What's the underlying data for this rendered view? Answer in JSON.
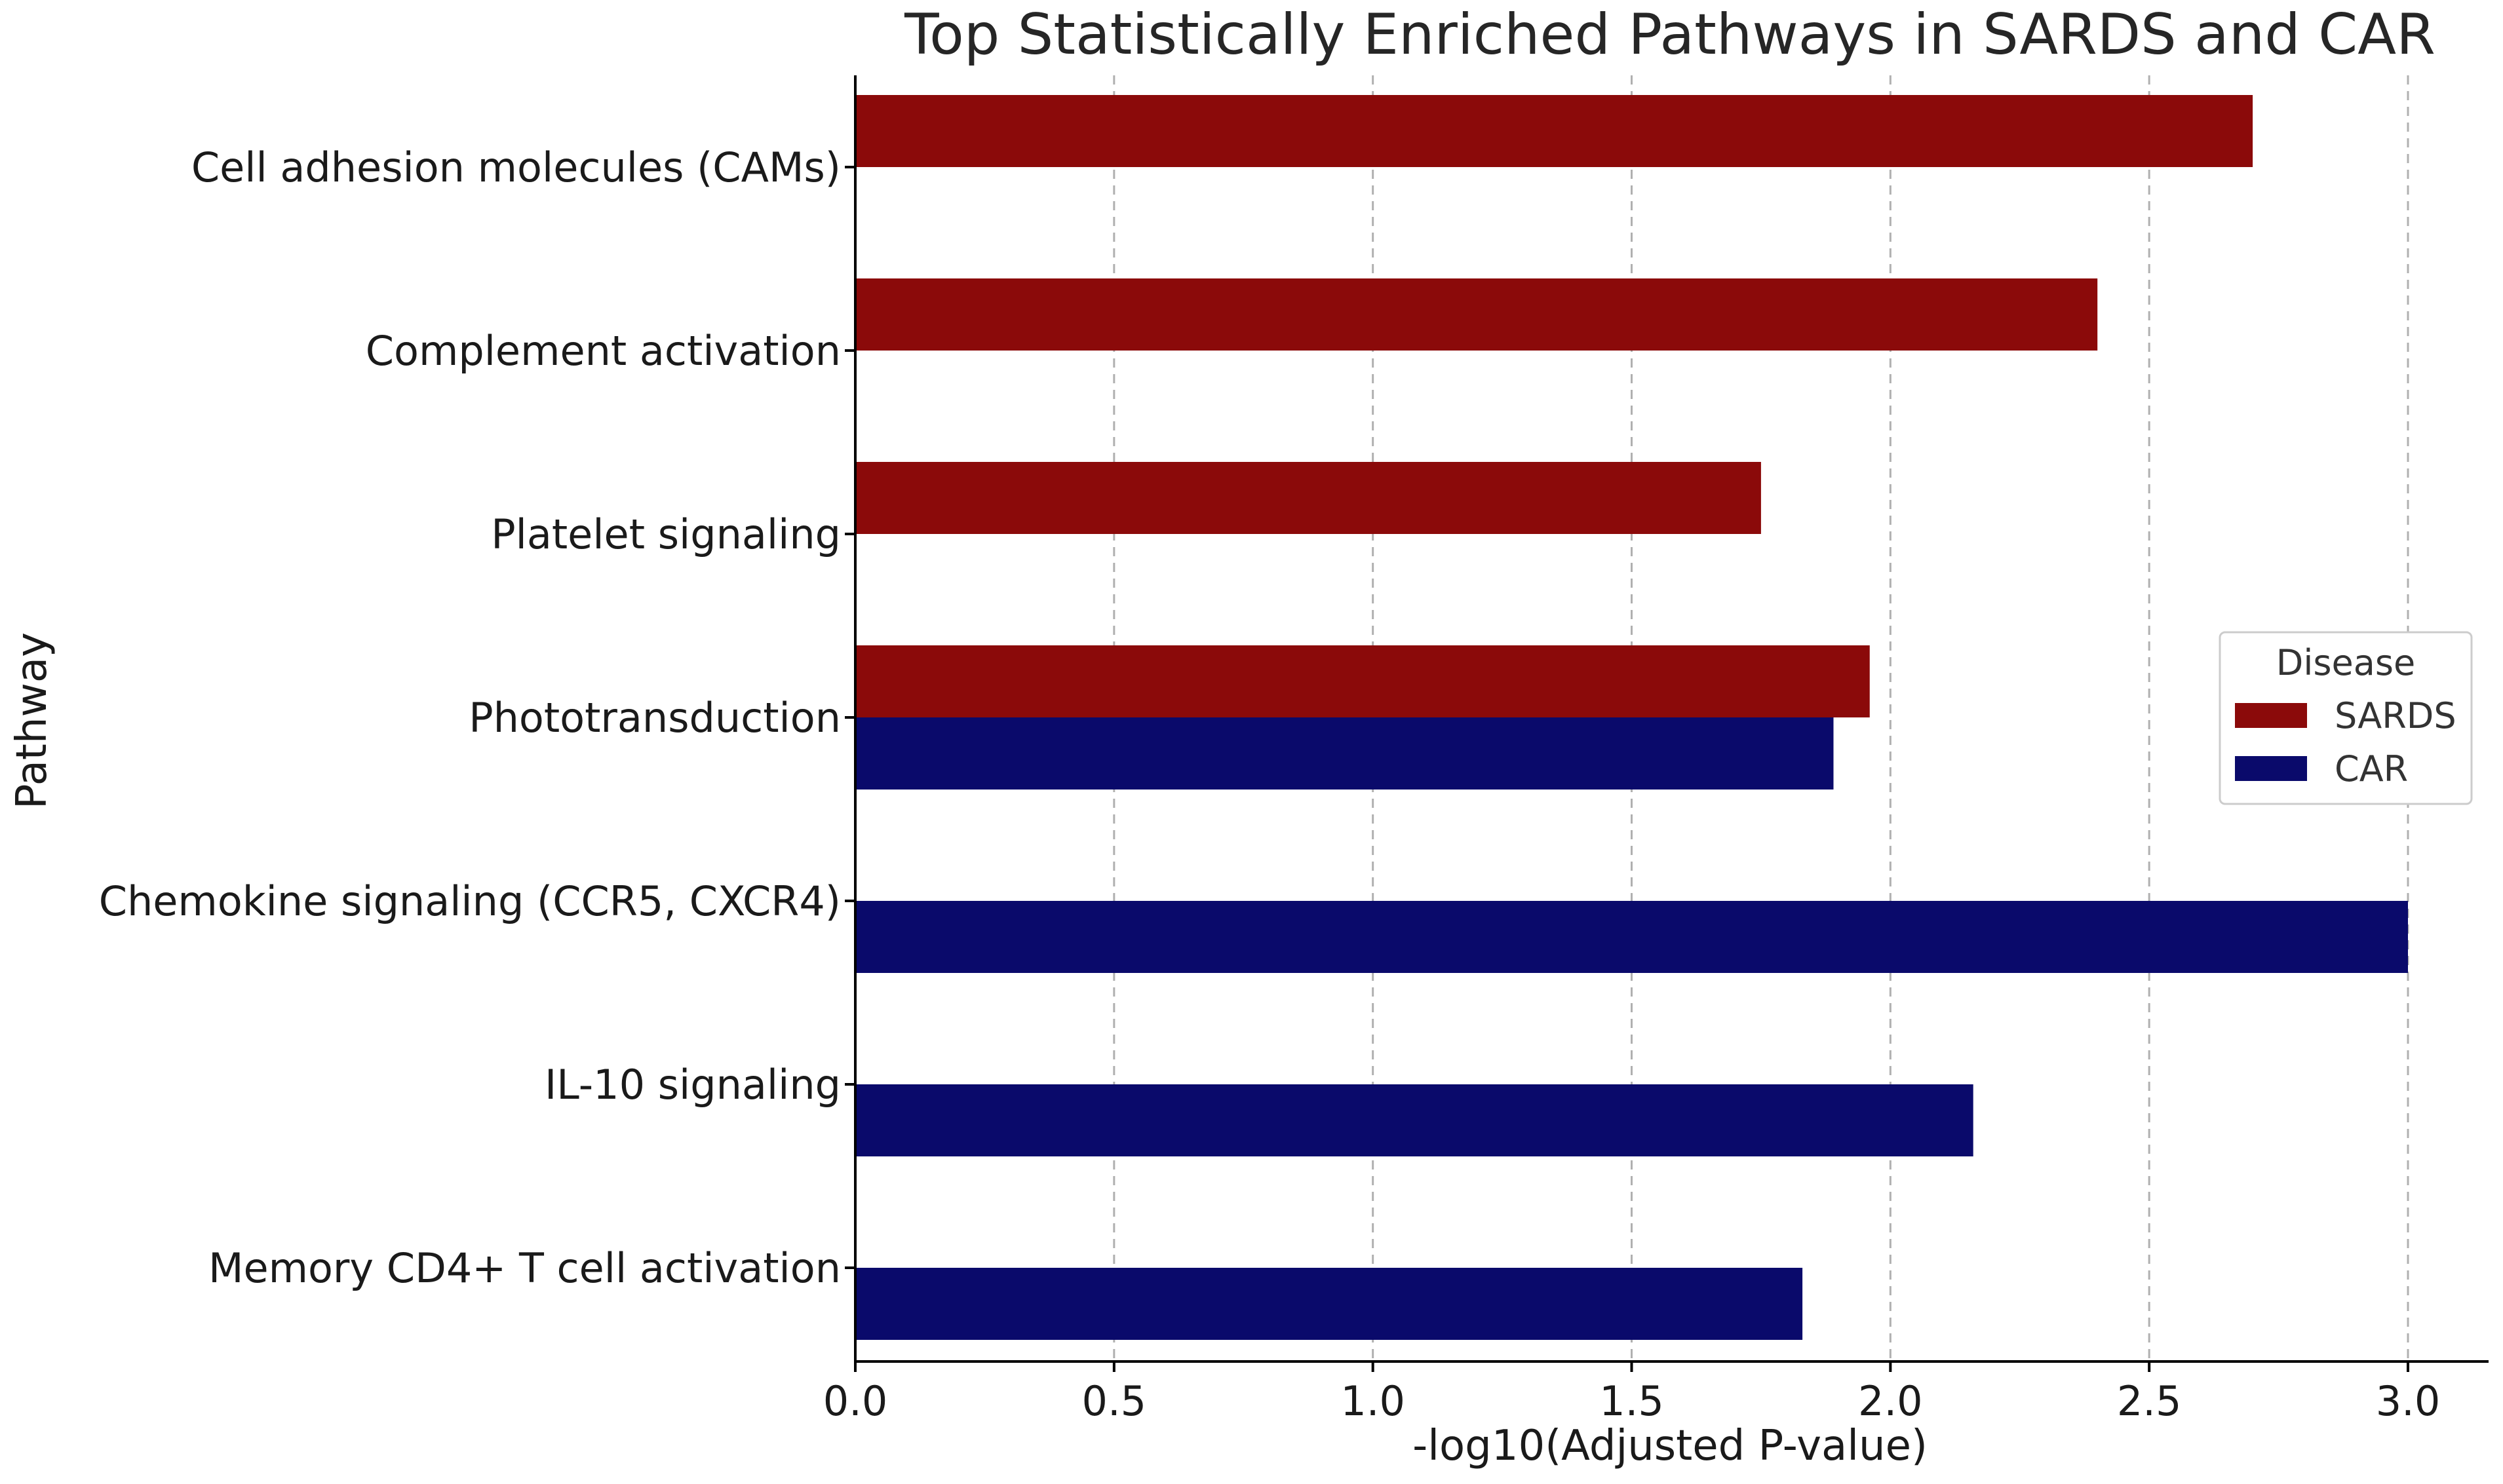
{
  "chart_data": {
    "type": "bar",
    "orientation": "horizontal",
    "title": "Top Statistically Enriched Pathways in SARDS and CAR",
    "xlabel": "-log10(Adjusted P-value)",
    "ylabel": "Pathway",
    "xlim": [
      0,
      3.15
    ],
    "xticks": [
      "0.0",
      "0.5",
      "1.0",
      "1.5",
      "2.0",
      "2.5",
      "3.0"
    ],
    "grid": "x-dashed",
    "categories": [
      "Cell adhesion molecules (CAMs)",
      "Complement activation",
      "Platelet signaling",
      "Phototransduction",
      "Chemokine signaling (CCR5, CXCR4)",
      "IL-10 signaling",
      "Memory CD4+ T cell activation"
    ],
    "series": [
      {
        "name": "SARDS",
        "color": "#8b0a0a",
        "values": [
          2.7,
          2.4,
          1.75,
          1.96,
          null,
          null,
          null
        ]
      },
      {
        "name": "CAR",
        "color": "#0a0a6b",
        "values": [
          null,
          null,
          null,
          1.89,
          3.0,
          2.16,
          1.83
        ]
      }
    ],
    "legend": {
      "title": "Disease",
      "position": "center-right"
    }
  }
}
